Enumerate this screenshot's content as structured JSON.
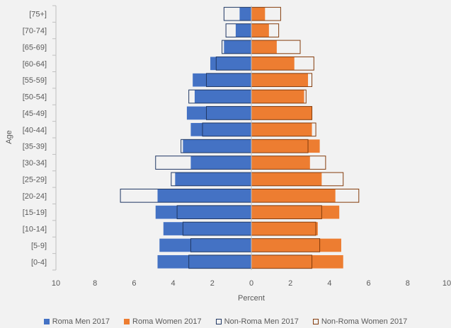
{
  "chart_data": {
    "type": "bar",
    "orientation": "horizontal-population-pyramid",
    "categories": [
      "[0-4]",
      "[5-9]",
      "[10-14]",
      "[15-19]",
      "[20-24]",
      "[25-29]",
      "[30-34]",
      "[35-39]",
      "[40-44]",
      "[45-49]",
      "[50-54]",
      "[55-59]",
      "[60-64]",
      "[65-69]",
      "[70-74]",
      "[75+]"
    ],
    "series": [
      {
        "name": "Roma Men 2017",
        "side": "left",
        "style": "filled",
        "color": "#4472c4",
        "values": [
          4.8,
          4.7,
          4.5,
          4.9,
          4.8,
          3.9,
          3.1,
          3.5,
          3.1,
          3.3,
          2.9,
          3.0,
          2.1,
          1.4,
          0.8,
          0.6
        ]
      },
      {
        "name": "Roma Women 2017",
        "side": "right",
        "style": "filled",
        "color": "#ed7d31",
        "values": [
          4.7,
          4.6,
          3.4,
          4.5,
          4.3,
          3.6,
          3.0,
          3.5,
          3.1,
          3.1,
          2.7,
          2.9,
          2.2,
          1.3,
          0.9,
          0.7
        ]
      },
      {
        "name": "Non-Roma Men 2017",
        "side": "left",
        "style": "outline",
        "color": "#203864",
        "values": [
          3.2,
          3.1,
          3.5,
          3.8,
          6.7,
          4.1,
          4.9,
          3.6,
          2.5,
          2.3,
          3.2,
          2.3,
          1.8,
          1.5,
          1.3,
          1.4
        ]
      },
      {
        "name": "Non-Roma Women 2017",
        "side": "right",
        "style": "outline",
        "color": "#843c0c",
        "values": [
          3.1,
          3.5,
          3.3,
          3.6,
          5.5,
          4.7,
          3.8,
          2.9,
          3.3,
          3.1,
          2.8,
          3.1,
          3.2,
          2.5,
          1.4,
          1.5
        ]
      }
    ],
    "x_ticks": [
      "10",
      "8",
      "6",
      "4",
      "2",
      "0",
      "2",
      "4",
      "6",
      "8",
      "10"
    ],
    "xlim": [
      -10,
      10
    ],
    "xlabel": "Percent",
    "ylabel": "Age",
    "grid": false,
    "legend_position": "bottom"
  }
}
